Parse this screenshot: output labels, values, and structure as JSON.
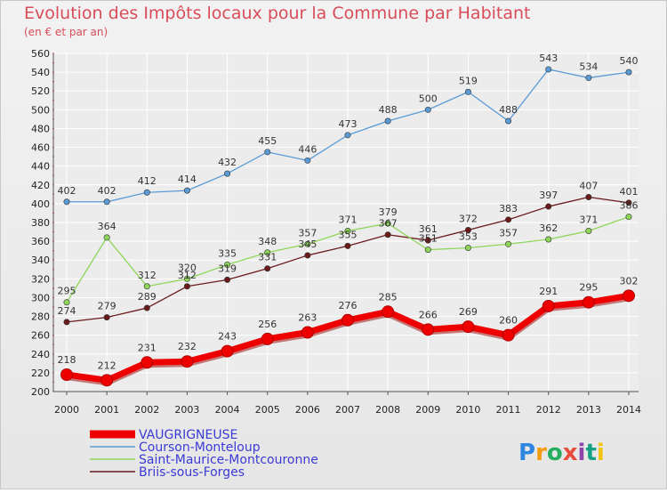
{
  "chart_data": {
    "type": "line",
    "title": "Evolution des Impôts locaux pour la Commune par Habitant",
    "subtitle": "(en € et par an)",
    "x": [
      "2000",
      "2001",
      "2002",
      "2003",
      "2004",
      "2005",
      "2006",
      "2007",
      "2008",
      "2009",
      "2010",
      "2011",
      "2012",
      "2013",
      "2014"
    ],
    "yticks": [
      200,
      220,
      240,
      260,
      280,
      300,
      320,
      340,
      360,
      380,
      400,
      420,
      440,
      460,
      480,
      500,
      520,
      540,
      560
    ],
    "ylim": [
      200,
      560
    ],
    "grid": true,
    "legend_position": "bottom-left",
    "series": [
      {
        "name": "VAUGRIGNEUSE",
        "color": "#ee0000",
        "values": [
          218,
          212,
          231,
          232,
          243,
          256,
          263,
          276,
          285,
          266,
          269,
          260,
          291,
          295,
          302
        ]
      },
      {
        "name": "Courson-Monteloup",
        "color": "#5b9bd5",
        "values": [
          402,
          402,
          412,
          414,
          432,
          455,
          446,
          473,
          488,
          500,
          519,
          488,
          543,
          534,
          540
        ]
      },
      {
        "name": "Saint-Maurice-Montcouronne",
        "color": "#8ed65a",
        "values": [
          295,
          364,
          312,
          320,
          335,
          348,
          357,
          371,
          379,
          351,
          353,
          357,
          362,
          371,
          386
        ]
      },
      {
        "name": "Briis-sous-Forges",
        "color": "#6b1a1a",
        "values": [
          274,
          279,
          289,
          312,
          319,
          331,
          345,
          355,
          367,
          361,
          372,
          383,
          397,
          407,
          401
        ]
      }
    ]
  },
  "logo": {
    "text": "Proxiti",
    "colors": [
      "#2e86de",
      "#f39c12",
      "#27ae60",
      "#e74c3c",
      "#8e44ad",
      "#16a085",
      "#f1c40f"
    ]
  }
}
